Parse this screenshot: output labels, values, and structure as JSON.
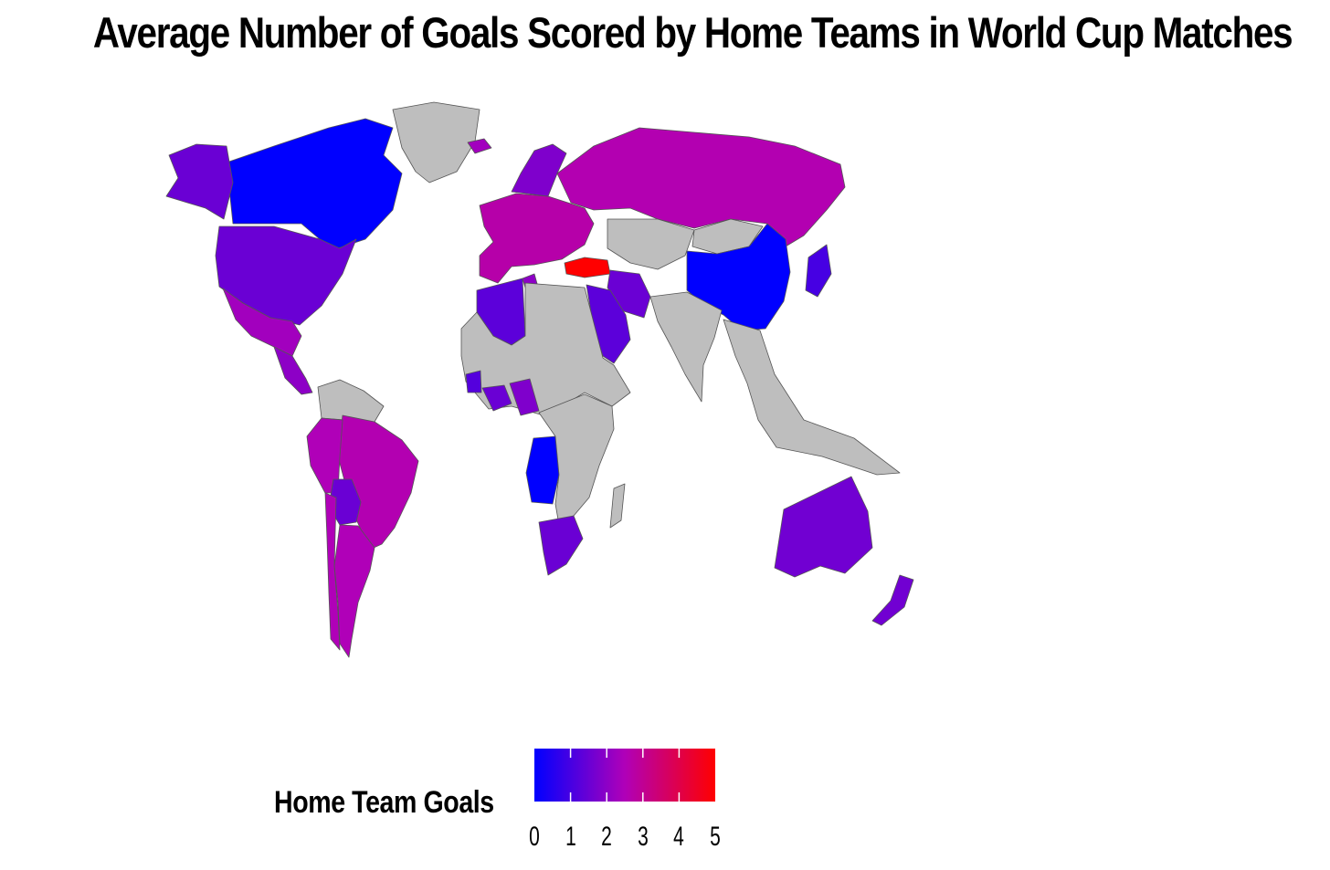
{
  "title": "Average Number of Goals Scored by Home Teams in World Cup Matches",
  "legend": {
    "title": "Home Team Goals",
    "ticks": [
      "0",
      "1",
      "2",
      "3",
      "4",
      "5"
    ],
    "range": [
      0,
      5
    ],
    "low_color": "#0000ff",
    "high_color": "#ff0000",
    "na_color": "#bebebe"
  },
  "map_data": {
    "type": "choropleth",
    "regions": [
      {
        "name": "Canada",
        "value": 0
      },
      {
        "name": "Alaska",
        "value": 1.5
      },
      {
        "name": "Greenland",
        "value": null
      },
      {
        "name": "United States",
        "value": 1.5
      },
      {
        "name": "Mexico",
        "value": 2.3
      },
      {
        "name": "Central America",
        "value": 2.0
      },
      {
        "name": "South America North",
        "value": null
      },
      {
        "name": "Brazil",
        "value": 2.6
      },
      {
        "name": "Peru",
        "value": 2.5
      },
      {
        "name": "Bolivia",
        "value": 1.5
      },
      {
        "name": "Argentina",
        "value": 2.5
      },
      {
        "name": "Chile",
        "value": 2.5
      },
      {
        "name": "Western Europe",
        "value": 2.7
      },
      {
        "name": "Scandinavia",
        "value": 1.8
      },
      {
        "name": "Iceland",
        "value": 2.3
      },
      {
        "name": "Russia",
        "value": 2.6
      },
      {
        "name": "Kazakhstan",
        "value": null
      },
      {
        "name": "Mongolia",
        "value": null
      },
      {
        "name": "China",
        "value": 0
      },
      {
        "name": "Japan",
        "value": 1.0
      },
      {
        "name": "Turkey",
        "value": 5
      },
      {
        "name": "Iran",
        "value": 1.5
      },
      {
        "name": "Saudi Arabia",
        "value": 1.3
      },
      {
        "name": "India",
        "value": null
      },
      {
        "name": "Southeast Asia",
        "value": null
      },
      {
        "name": "Algeria",
        "value": 1.3
      },
      {
        "name": "Tunisia",
        "value": 2.0
      },
      {
        "name": "Sahara Africa",
        "value": null
      },
      {
        "name": "Nigeria",
        "value": 1.5
      },
      {
        "name": "Ghana",
        "value": 1.2
      },
      {
        "name": "Cameroon",
        "value": 1.8
      },
      {
        "name": "Angola",
        "value": 0
      },
      {
        "name": "East Africa",
        "value": null
      },
      {
        "name": "Madagascar",
        "value": null
      },
      {
        "name": "South Africa",
        "value": 1.5
      },
      {
        "name": "Australia",
        "value": 1.6
      },
      {
        "name": "New Zealand",
        "value": 1.6
      }
    ]
  }
}
